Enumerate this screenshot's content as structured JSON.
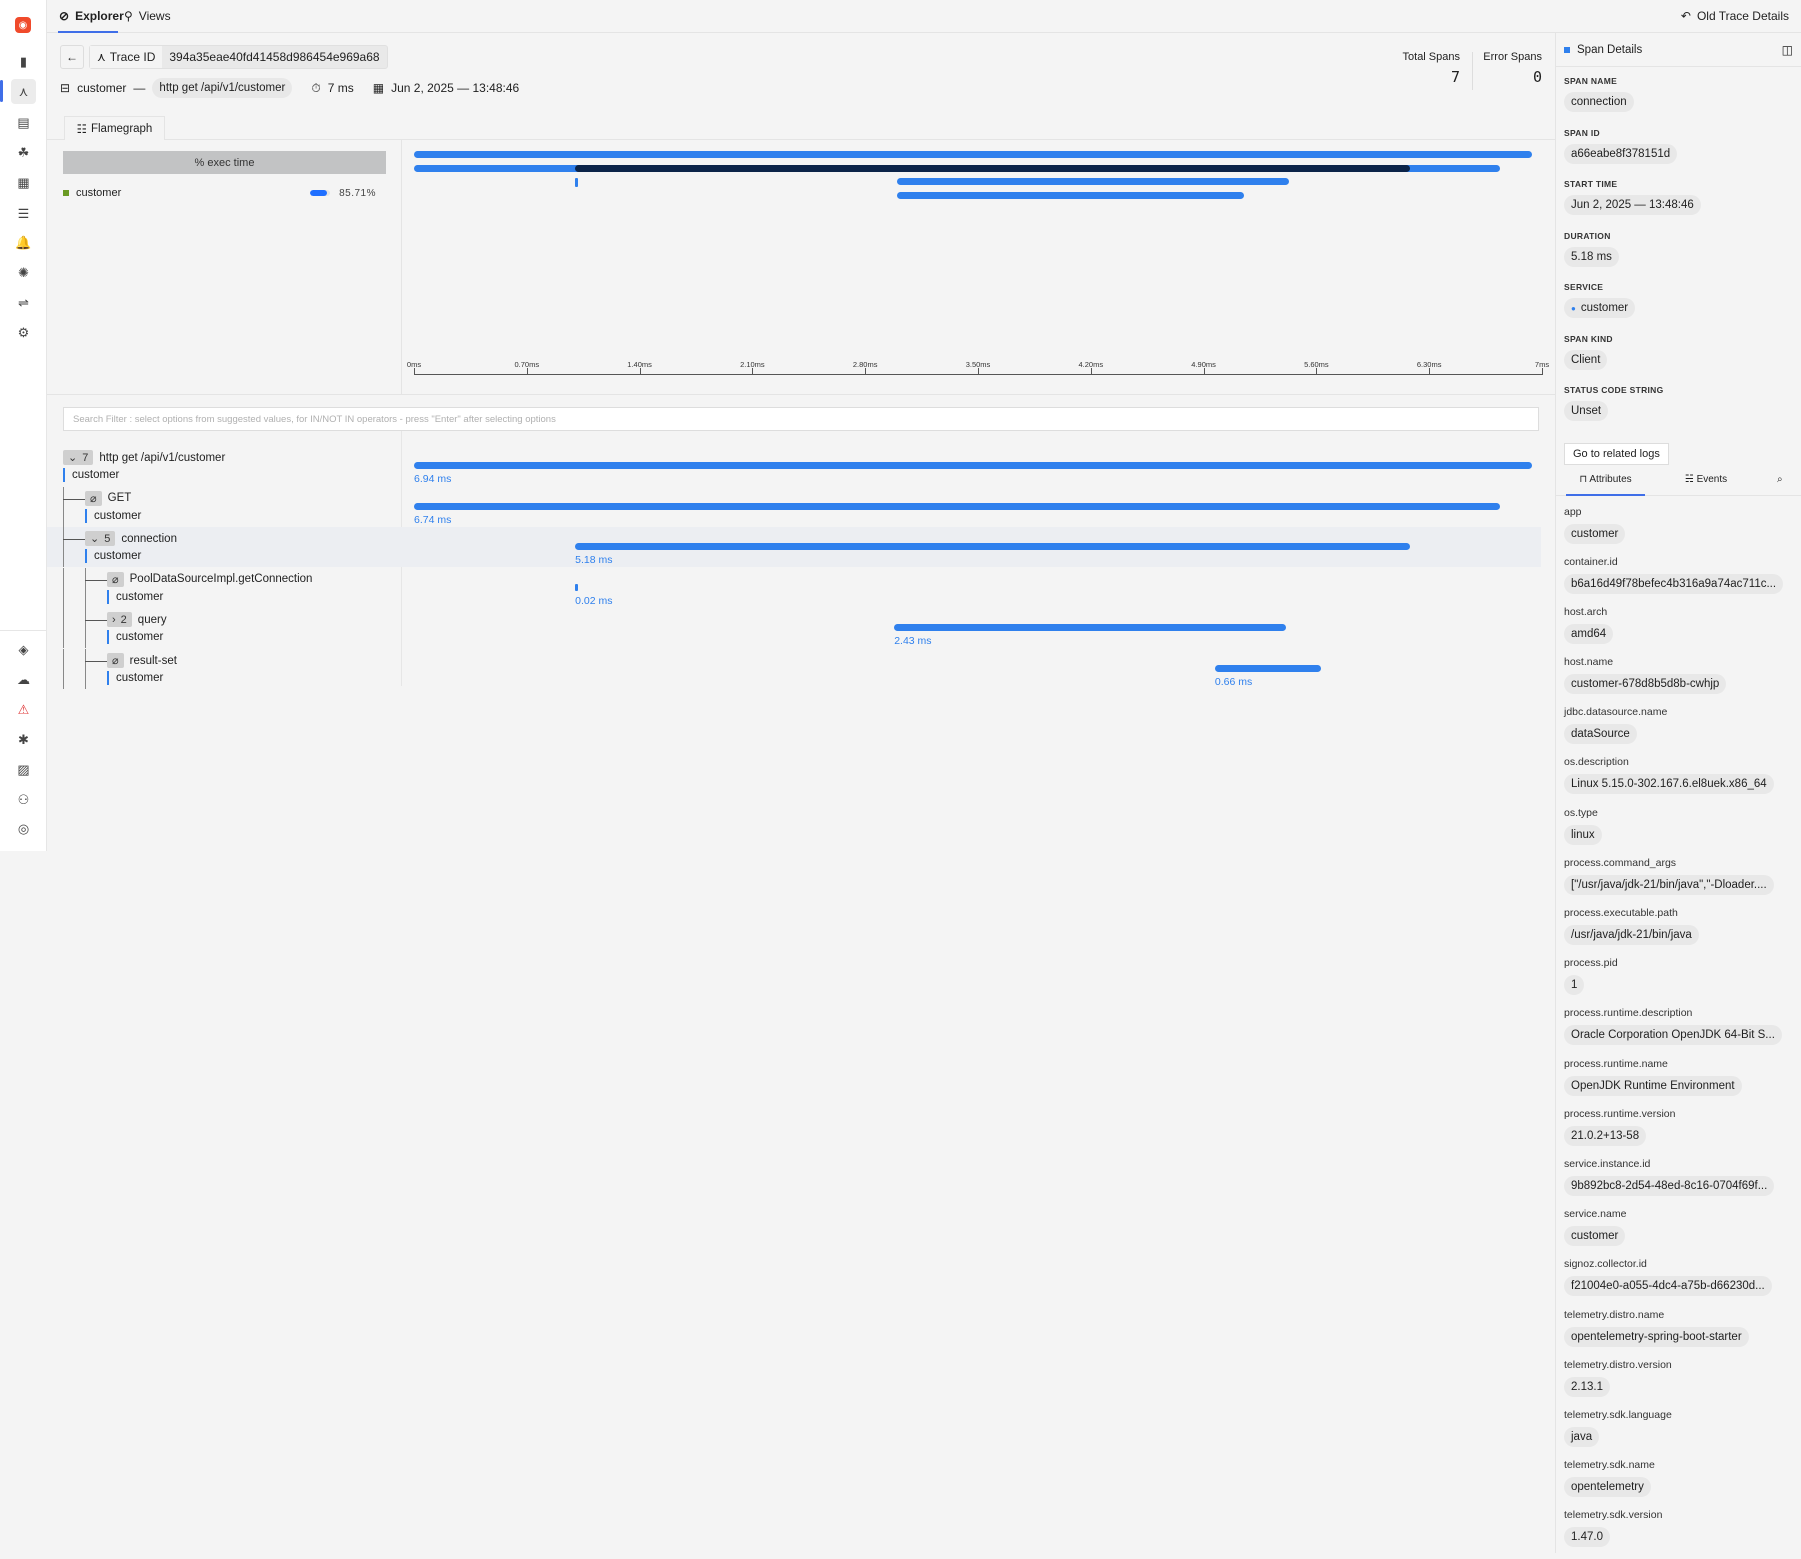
{
  "nav": {
    "tabs": [
      {
        "label": "Explorer",
        "icon": "compass-icon"
      },
      {
        "label": "Views",
        "icon": "views-icon"
      }
    ],
    "old_trace_details": "Old Trace Details"
  },
  "sidebar": {
    "top_icons": [
      "bar-chart-icon",
      "traces-icon",
      "logs-icon",
      "services-icon",
      "dashboards-icon",
      "list-icon",
      "alerts-icon",
      "bug-icon",
      "pipelines-icon",
      "settings-icon"
    ],
    "bottom_icons": [
      "integrations-icon",
      "cloud-icon",
      "warning-icon",
      "slack-icon",
      "docs-icon",
      "invite-user-icon",
      "account-icon"
    ]
  },
  "header": {
    "trace_id_label": "Trace ID",
    "trace_id": "394a35eae40fd41458d986454e969a68",
    "service": "customer",
    "separator": "—",
    "root_span": "http get /api/v1/customer",
    "duration": "7 ms",
    "timestamp": "Jun 2, 2025 — 13:48:46",
    "total_spans_label": "Total Spans",
    "total_spans": "7",
    "error_spans_label": "Error Spans",
    "error_spans": "0"
  },
  "flamegraph": {
    "tab_label": "Flamegraph",
    "exec_header": "% exec time",
    "legend": [
      {
        "service": "customer",
        "color": "#6a9a23",
        "percent": "85.71%",
        "fraction": 0.8571
      }
    ],
    "axis_ticks": [
      "0ms",
      "0.70ms",
      "1.40ms",
      "2.10ms",
      "2.80ms",
      "3.50ms",
      "4.20ms",
      "4.90ms",
      "5.60ms",
      "6.30ms",
      "7ms"
    ],
    "total_ms": 7,
    "rows": [
      [
        {
          "start": 0,
          "dur": 6.94
        }
      ],
      [
        {
          "start": 0,
          "dur": 6.74
        },
        {
          "start": 1.0,
          "dur": 5.18,
          "selected": true
        }
      ],
      [
        {
          "start": 1.0,
          "dur": 0.02
        },
        {
          "start": 3.0,
          "dur": 2.43
        }
      ],
      [
        {
          "start": 3.0,
          "dur": 2.15
        }
      ]
    ]
  },
  "search": {
    "placeholder": "Search Filter : select options from suggested values, for IN/NOT IN operators - press \"Enter\" after selecting options"
  },
  "spans": [
    {
      "name": "http get /api/v1/customer",
      "service": "customer",
      "level": 0,
      "children": "7",
      "expanded": true,
      "start": 0,
      "dur": 6.94,
      "duration": "6.94 ms"
    },
    {
      "name": "GET",
      "service": "customer",
      "level": 1,
      "leaf": true,
      "start": 0,
      "dur": 6.74,
      "duration": "6.74 ms"
    },
    {
      "name": "connection",
      "service": "customer",
      "level": 1,
      "children": "5",
      "expanded": true,
      "selected": true,
      "start": 1.0,
      "dur": 5.18,
      "duration": "5.18 ms"
    },
    {
      "name": "PoolDataSourceImpl.getConnection",
      "service": "customer",
      "level": 2,
      "leaf": true,
      "start": 1.0,
      "dur": 0.02,
      "duration": "0.02 ms"
    },
    {
      "name": "query",
      "service": "customer",
      "level": 2,
      "children": "2",
      "expanded": false,
      "start": 2.98,
      "dur": 2.43,
      "duration": "2.43 ms"
    },
    {
      "name": "result-set",
      "service": "customer",
      "level": 2,
      "leaf": true,
      "start": 4.97,
      "dur": 0.66,
      "duration": "0.66 ms"
    }
  ],
  "details": {
    "title": "Span Details",
    "fields": [
      {
        "label": "Span Name",
        "value": "connection"
      },
      {
        "label": "Span ID",
        "value": "a66eabe8f378151d"
      },
      {
        "label": "Start Time",
        "value": "Jun 2, 2025 — 13:48:46"
      },
      {
        "label": "Duration",
        "value": "5.18 ms"
      },
      {
        "label": "Service",
        "value": "customer"
      },
      {
        "label": "Span Kind",
        "value": "Client"
      },
      {
        "label": "Status Code String",
        "value": "Unset"
      }
    ],
    "logs_button": "Go to related logs",
    "tabs": [
      "Attributes",
      "Events"
    ],
    "attributes": [
      {
        "key": "app",
        "value": "customer"
      },
      {
        "key": "container.id",
        "value": "b6a16d49f78befec4b316a9a74ac711c..."
      },
      {
        "key": "host.arch",
        "value": "amd64"
      },
      {
        "key": "host.name",
        "value": "customer-678d8b5d8b-cwhjp"
      },
      {
        "key": "jdbc.datasource.name",
        "value": "dataSource"
      },
      {
        "key": "os.description",
        "value": "Linux 5.15.0-302.167.6.el8uek.x86_64"
      },
      {
        "key": "os.type",
        "value": "linux"
      },
      {
        "key": "process.command_args",
        "value": "[\"/usr/java/jdk-21/bin/java\",\"-Dloader...."
      },
      {
        "key": "process.executable.path",
        "value": "/usr/java/jdk-21/bin/java"
      },
      {
        "key": "process.pid",
        "value": "1"
      },
      {
        "key": "process.runtime.description",
        "value": "Oracle Corporation OpenJDK 64-Bit S..."
      },
      {
        "key": "process.runtime.name",
        "value": "OpenJDK Runtime Environment"
      },
      {
        "key": "process.runtime.version",
        "value": "21.0.2+13-58"
      },
      {
        "key": "service.instance.id",
        "value": "9b892bc8-2d54-48ed-8c16-0704f69f..."
      },
      {
        "key": "service.name",
        "value": "customer"
      },
      {
        "key": "signoz.collector.id",
        "value": "f21004e0-a055-4dc4-a75b-d66230d..."
      },
      {
        "key": "telemetry.distro.name",
        "value": "opentelemetry-spring-boot-starter"
      },
      {
        "key": "telemetry.distro.version",
        "value": "2.13.1"
      },
      {
        "key": "telemetry.sdk.language",
        "value": "java"
      },
      {
        "key": "telemetry.sdk.name",
        "value": "opentelemetry"
      },
      {
        "key": "telemetry.sdk.version",
        "value": "1.47.0"
      }
    ]
  }
}
